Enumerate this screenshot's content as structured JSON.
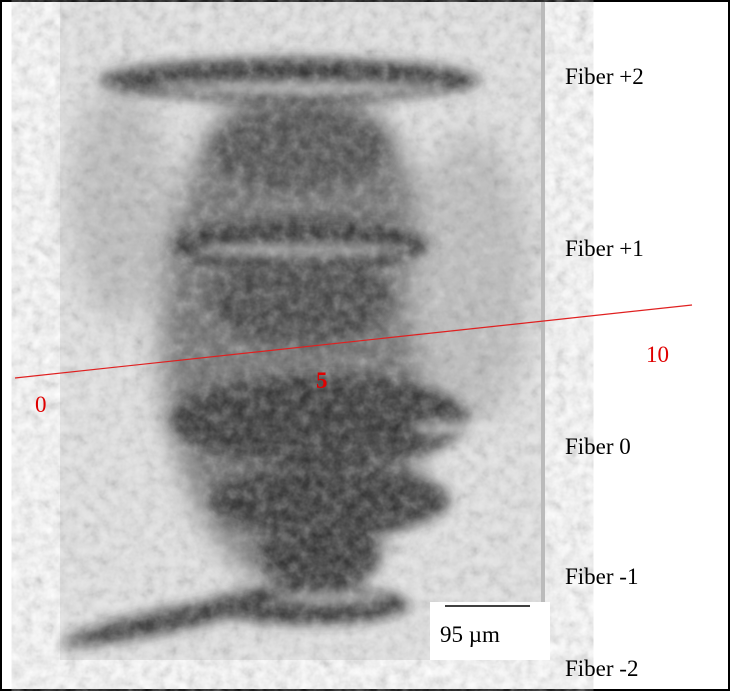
{
  "labels": {
    "fibers": [
      "Fiber +2",
      "Fiber +1",
      "Fiber 0",
      "Fiber -1",
      "Fiber -2"
    ],
    "line_marks": [
      "0",
      "5",
      "10"
    ],
    "scale_bar": "95 µm"
  }
}
